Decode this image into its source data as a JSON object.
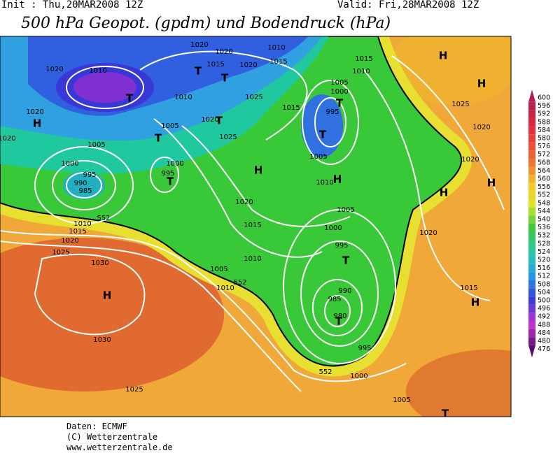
{
  "header": {
    "init": "Init : Thu,20MAR2008 12Z",
    "valid": "Valid: Fri,28MAR2008 12Z",
    "title": "500 hPa Geopot. (gpdm) und Bodendruck (hPa)"
  },
  "map": {
    "pressure_labels": [
      "1020",
      "1020",
      "1010",
      "1015",
      "1020",
      "1015",
      "1015",
      "1010",
      "1020",
      "1010",
      "1010",
      "1025",
      "1005",
      "1000",
      "1015",
      "995",
      "1020",
      "1025",
      "1020",
      "1005",
      "1020",
      "1025",
      "1020",
      "1005",
      "1005",
      "1020",
      "1000",
      "995",
      "995",
      "1000",
      "990",
      "985",
      "1010",
      "1020",
      "1005",
      "1010",
      "1015",
      "1020",
      "1000",
      "1020",
      "995",
      "1015",
      "1025",
      "1010",
      "1030",
      "1005",
      "1010",
      "1015",
      "990",
      "985",
      "980",
      "1030",
      "995",
      "1000",
      "1025",
      "1005"
    ],
    "contour_labels": [
      "552",
      "552",
      "552"
    ],
    "highs": [
      "H",
      "H",
      "H",
      "H",
      "H",
      "H",
      "H",
      "H",
      "H"
    ],
    "lows": [
      "T",
      "T",
      "T",
      "T",
      "T",
      "T",
      "T",
      "T",
      "T",
      "T",
      "T"
    ]
  },
  "scale": {
    "levels": [
      600,
      596,
      592,
      588,
      584,
      580,
      576,
      572,
      568,
      564,
      560,
      556,
      552,
      548,
      544,
      540,
      536,
      532,
      528,
      524,
      520,
      516,
      512,
      508,
      504,
      500,
      496,
      492,
      488,
      484,
      480,
      476
    ]
  },
  "footer": {
    "source": "Daten: ECMWF",
    "copyright": "(C) Wetterzentrale",
    "url": "www.wetterzentrale.de"
  }
}
